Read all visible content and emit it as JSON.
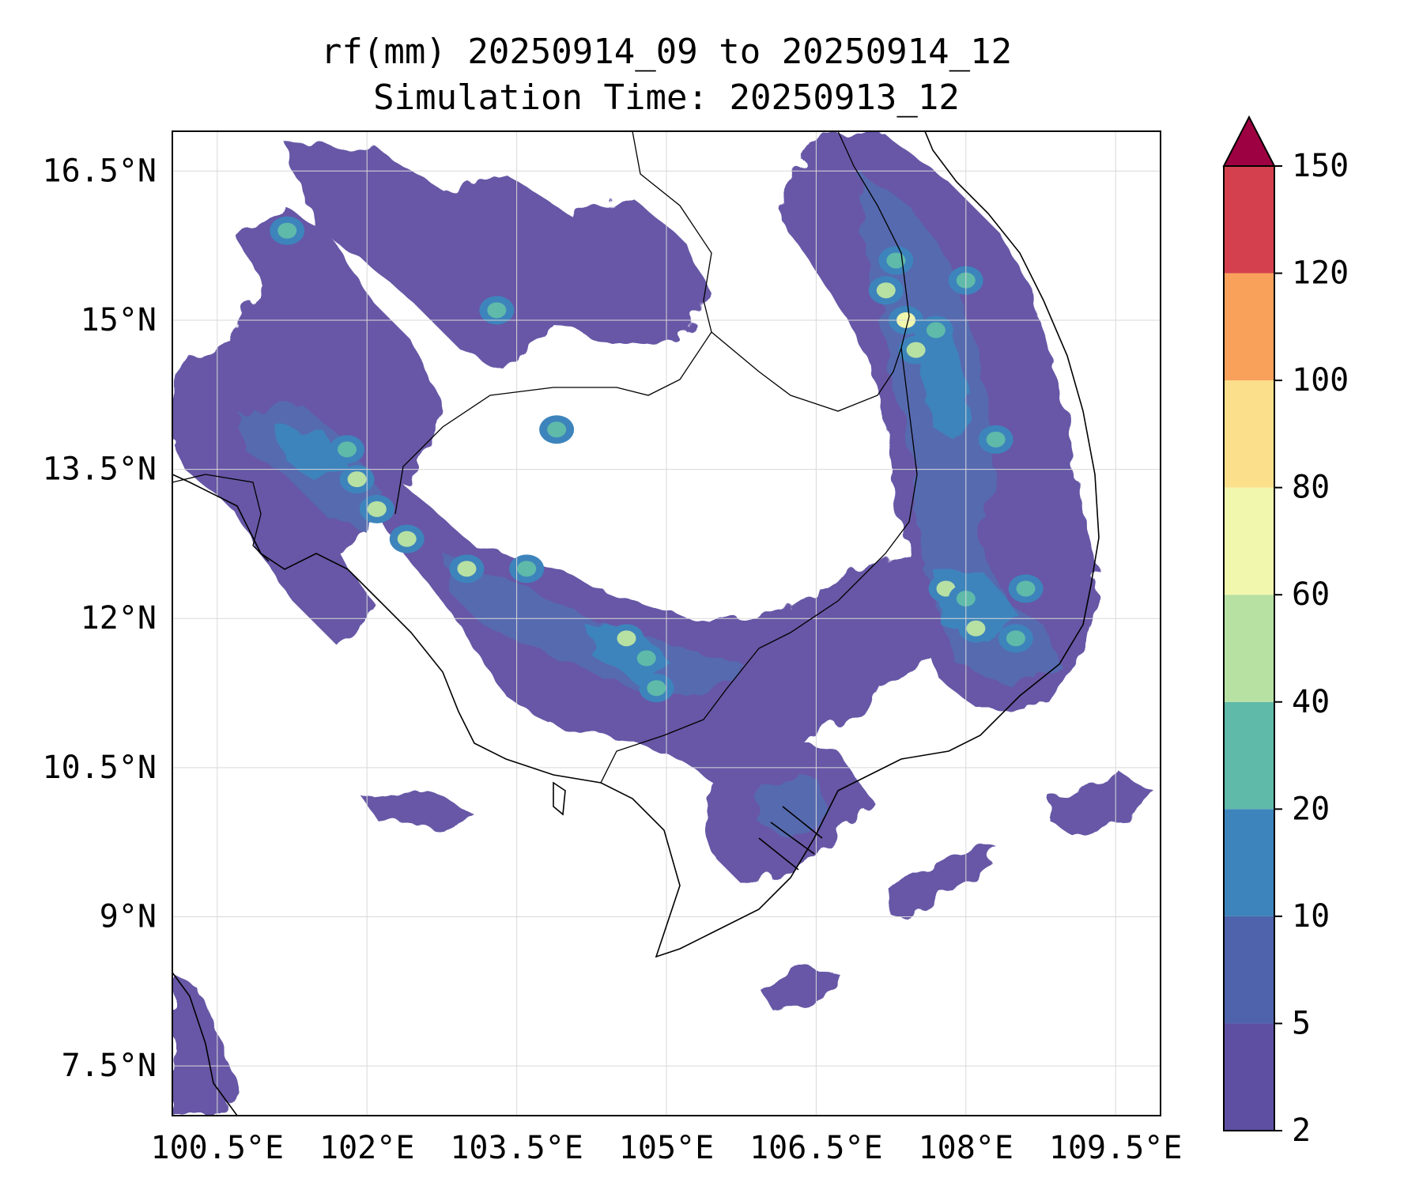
{
  "title": {
    "line1": "rf(mm) 20250914_09 to 20250914_12",
    "line2": "Simulation Time: 20250913_12"
  },
  "map": {
    "lon_range": [
      100.05,
      109.95
    ],
    "lat_range": [
      7.0,
      16.9
    ],
    "x_ticks": [
      100.5,
      102,
      103.5,
      105,
      106.5,
      108,
      109.5
    ],
    "x_tick_labels": [
      "100.5°E",
      "102°E",
      "103.5°E",
      "105°E",
      "106.5°E",
      "108°E",
      "109.5°E"
    ],
    "y_ticks": [
      7.5,
      9,
      10.5,
      12,
      13.5,
      15,
      16.5
    ],
    "y_tick_labels": [
      "7.5°N",
      "9°N",
      "10.5°N",
      "12°N",
      "13.5°N",
      "15°N",
      "16.5°N"
    ],
    "gridlines": true,
    "coastlines": true,
    "borders": true
  },
  "colorbar": {
    "levels": [
      2,
      5,
      10,
      20,
      40,
      60,
      80,
      100,
      120,
      150
    ],
    "tick_labels": [
      "2",
      "5",
      "10",
      "20",
      "40",
      "60",
      "80",
      "100",
      "120",
      "150"
    ],
    "colors": [
      "#5e4fa2",
      "#4e63ac",
      "#3d84bc",
      "#5fbaa9",
      "#b7e0a3",
      "#f1f7ad",
      "#fcdf8a",
      "#f9a15b",
      "#d4404e"
    ],
    "extend_color": "#9e0142",
    "extend": "max"
  },
  "chart_data": {
    "type": "heatmap",
    "title": "rf(mm) 20250914_09 to 20250914_12",
    "subtitle": "Simulation Time: 20250913_12",
    "units": "mm",
    "levels": [
      2,
      5,
      10,
      20,
      40,
      60,
      80,
      100,
      120,
      150
    ],
    "rain_cells": [
      {
        "lon": 101.8,
        "lat": 13.7,
        "value": 30
      },
      {
        "lon": 101.9,
        "lat": 13.4,
        "value": 40
      },
      {
        "lon": 102.1,
        "lat": 13.1,
        "value": 40
      },
      {
        "lon": 102.4,
        "lat": 12.8,
        "value": 50
      },
      {
        "lon": 103.0,
        "lat": 12.5,
        "value": 40
      },
      {
        "lon": 103.6,
        "lat": 12.5,
        "value": 30
      },
      {
        "lon": 104.6,
        "lat": 11.8,
        "value": 50
      },
      {
        "lon": 104.8,
        "lat": 11.6,
        "value": 30
      },
      {
        "lon": 107.4,
        "lat": 15.0,
        "value": 60
      },
      {
        "lon": 107.2,
        "lat": 15.3,
        "value": 40
      },
      {
        "lon": 107.5,
        "lat": 14.7,
        "value": 40
      },
      {
        "lon": 107.7,
        "lat": 14.9,
        "value": 20
      },
      {
        "lon": 108.0,
        "lat": 15.4,
        "value": 30
      },
      {
        "lon": 107.3,
        "lat": 15.6,
        "value": 30
      },
      {
        "lon": 108.3,
        "lat": 13.8,
        "value": 30
      },
      {
        "lon": 107.8,
        "lat": 12.3,
        "value": 40
      },
      {
        "lon": 108.0,
        "lat": 12.2,
        "value": 30
      },
      {
        "lon": 108.1,
        "lat": 11.9,
        "value": 50
      },
      {
        "lon": 108.5,
        "lat": 11.8,
        "value": 30
      },
      {
        "lon": 108.6,
        "lat": 12.3,
        "value": 20
      },
      {
        "lon": 103.9,
        "lat": 13.9,
        "value": 20
      },
      {
        "lon": 104.9,
        "lat": 11.3,
        "value": 20
      },
      {
        "lon": 103.3,
        "lat": 15.1,
        "value": 20
      },
      {
        "lon": 101.2,
        "lat": 15.9,
        "value": 20
      }
    ]
  }
}
